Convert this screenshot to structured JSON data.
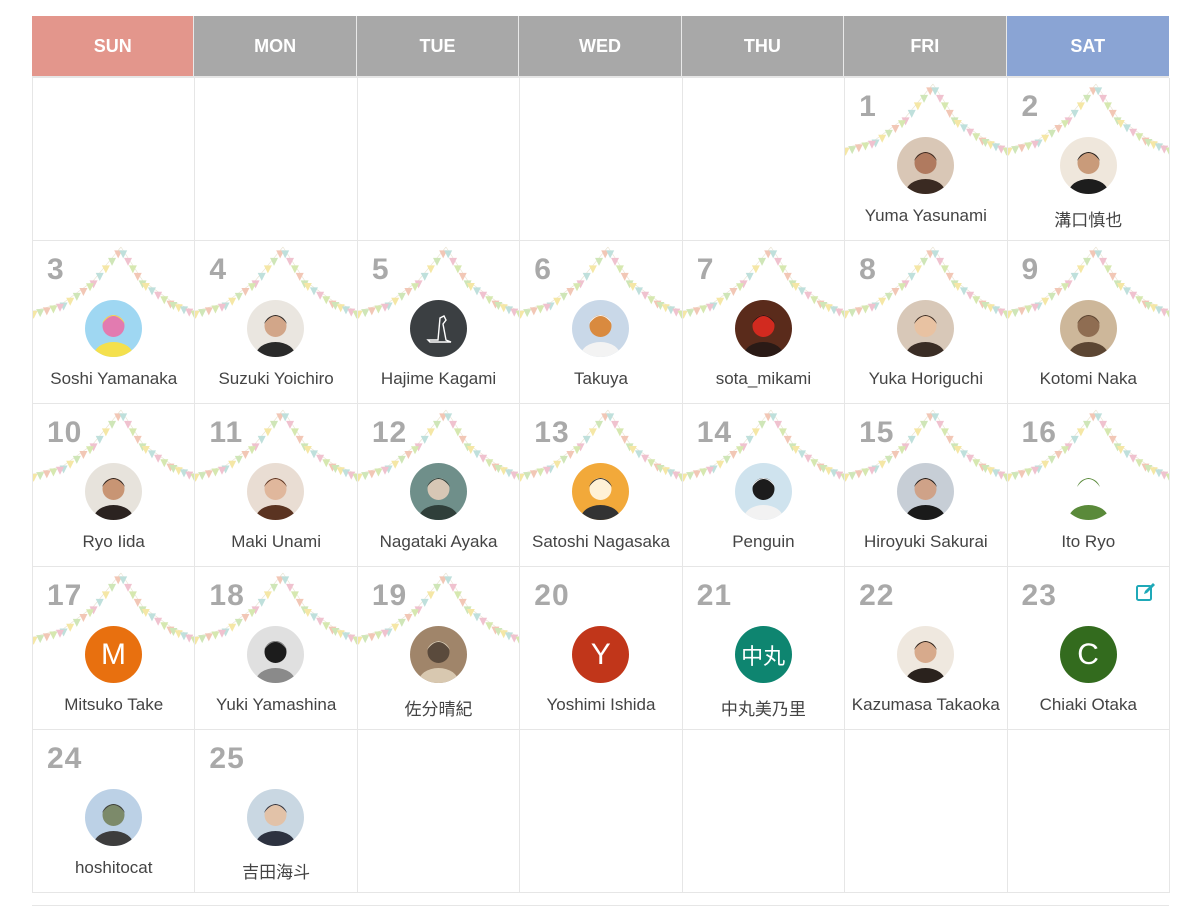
{
  "weekdays": [
    "SUN",
    "MON",
    "TUE",
    "WED",
    "THU",
    "FRI",
    "SAT"
  ],
  "colors": {
    "sun": "#e3968c",
    "sat": "#8aa4d4",
    "weekday": "#a8a8a8",
    "edit": "#1fa9b8"
  },
  "weeks": [
    [
      null,
      null,
      null,
      null,
      null,
      {
        "day": "1",
        "name": "Yuma Yasunami",
        "avatar": "photo-woman",
        "garland": true
      },
      {
        "day": "2",
        "name": "溝口慎也",
        "avatar": "photo-man",
        "garland": true
      }
    ],
    [
      {
        "day": "3",
        "name": "Soshi Yamanaka",
        "avatar": "illustration-colorful",
        "garland": true
      },
      {
        "day": "4",
        "name": "Suzuki Yoichiro",
        "avatar": "photo-man-glasses",
        "garland": true
      },
      {
        "day": "5",
        "name": "Hajime Kagami",
        "avatar": "logo-dark",
        "garland": true
      },
      {
        "day": "6",
        "name": "Takuya",
        "avatar": "photo-fox",
        "garland": true
      },
      {
        "day": "7",
        "name": "sota_mikami",
        "avatar": "photo-red",
        "garland": true
      },
      {
        "day": "8",
        "name": "Yuka Horiguchi",
        "avatar": "photo-family",
        "garland": true
      },
      {
        "day": "9",
        "name": "Kotomi Naka",
        "avatar": "photo-rabbit",
        "garland": true
      }
    ],
    [
      {
        "day": "10",
        "name": "Ryo Iida",
        "avatar": "photo-man-smile",
        "garland": true
      },
      {
        "day": "11",
        "name": "Maki Unami",
        "avatar": "photo-woman-hair",
        "garland": true
      },
      {
        "day": "12",
        "name": "Nagataki Ayaka",
        "avatar": "photo-green",
        "garland": true
      },
      {
        "day": "13",
        "name": "Satoshi Nagasaka",
        "avatar": "illustration-face",
        "garland": true
      },
      {
        "day": "14",
        "name": "Penguin",
        "avatar": "photo-penguin",
        "garland": true
      },
      {
        "day": "15",
        "name": "Hiroyuki Sakurai",
        "avatar": "photo-man-dark",
        "garland": true
      },
      {
        "day": "16",
        "name": "Ito Ryo",
        "avatar": "illustration-sketch",
        "garland": true
      }
    ],
    [
      {
        "day": "17",
        "name": "Mitsuko Take",
        "avatar": "letter",
        "letter": "M",
        "color": "#e8700f",
        "garland": true
      },
      {
        "day": "18",
        "name": "Yuki Yamashina",
        "avatar": "photo-bw",
        "garland": true
      },
      {
        "day": "19",
        "name": "佐分晴紀",
        "avatar": "photo-room",
        "garland": true
      },
      {
        "day": "20",
        "name": "Yoshimi Ishida",
        "avatar": "letter",
        "letter": "Y",
        "color": "#c1361a",
        "garland": false
      },
      {
        "day": "21",
        "name": "中丸美乃里",
        "avatar": "letter",
        "letter": "中丸",
        "color": "#0e8570",
        "garland": false
      },
      {
        "day": "22",
        "name": "Kazumasa Takaoka",
        "avatar": "photo-man-light",
        "garland": false
      },
      {
        "day": "23",
        "name": "Chiaki Otaka",
        "avatar": "letter",
        "letter": "C",
        "color": "#336b1e",
        "garland": false,
        "editable": true
      }
    ],
    [
      {
        "day": "24",
        "name": "hoshitocat",
        "avatar": "photo-mountain",
        "garland": false
      },
      {
        "day": "25",
        "name": "吉田海斗",
        "avatar": "photo-man-outdoor",
        "garland": false
      },
      null,
      null,
      null,
      null,
      null
    ]
  ]
}
